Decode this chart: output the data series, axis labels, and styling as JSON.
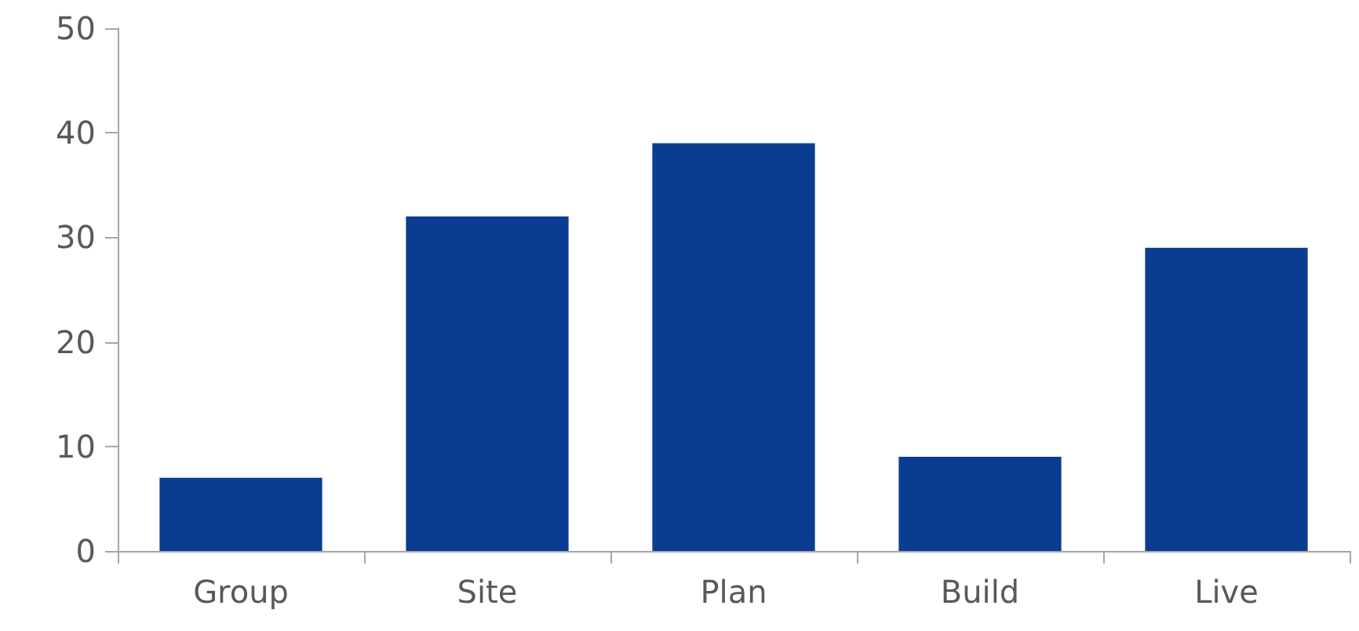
{
  "chart_data": {
    "type": "bar",
    "categories": [
      "Group",
      "Site",
      "Plan",
      "Build",
      "Live"
    ],
    "values": [
      7,
      32,
      39,
      9,
      29
    ],
    "color": "#0a3d91",
    "ylim": [
      0,
      50
    ],
    "yticks": [
      0,
      10,
      20,
      30,
      40,
      50
    ]
  }
}
